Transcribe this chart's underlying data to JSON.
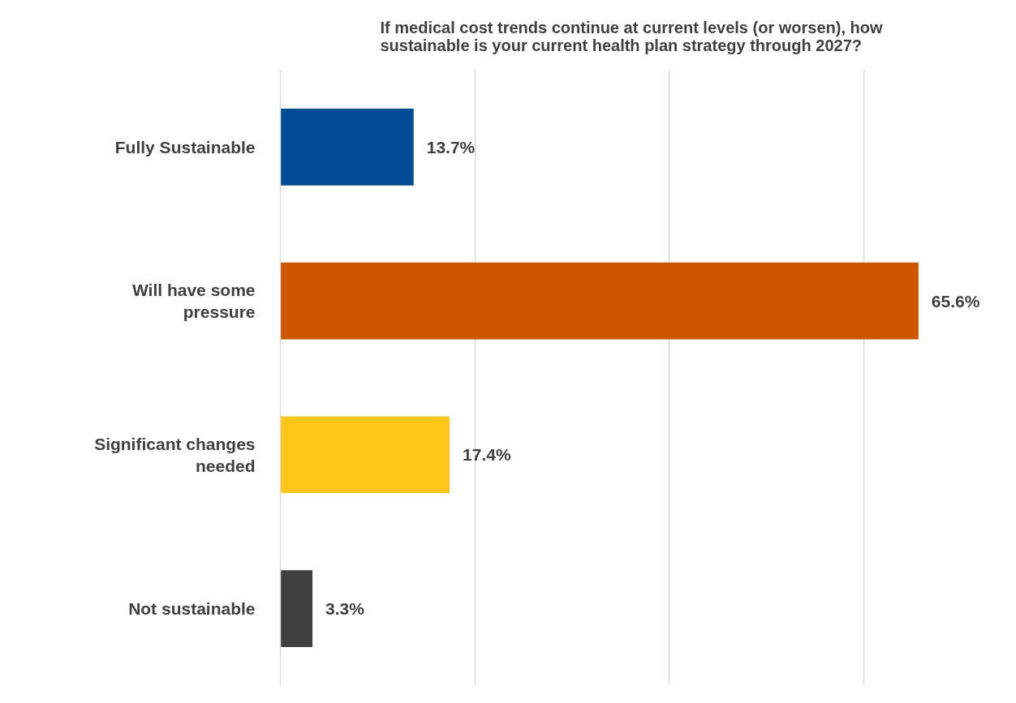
{
  "chart_data": {
    "type": "bar",
    "orientation": "horizontal",
    "title": "If medical cost trends continue at current levels (or worsen), how sustainable is your current health plan strategy through 2027?",
    "categories": [
      "Fully Sustainable",
      "Will have some pressure",
      "Significant changes needed",
      "Not sustainable"
    ],
    "values": [
      13.7,
      65.6,
      17.4,
      3.3
    ],
    "value_labels": [
      "13.7%",
      "65.6%",
      "17.4%",
      "3.3%"
    ],
    "colors": [
      "#004c97",
      "#cc5500",
      "#ffc61a",
      "#404040"
    ],
    "tick_labels": "y",
    "grid": "x"
  }
}
